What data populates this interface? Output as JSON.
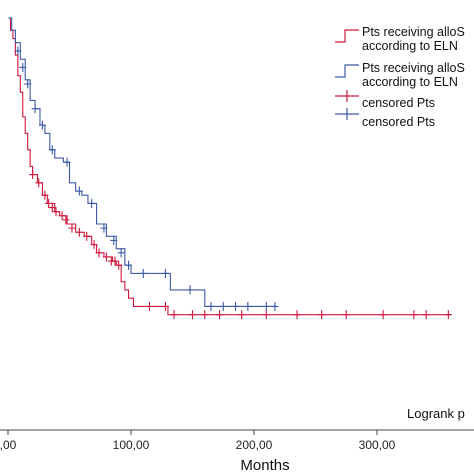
{
  "chart_data": {
    "type": "line",
    "xlabel": "Months",
    "x_ticks": [
      0,
      100,
      200,
      300
    ],
    "x_tick_labels": [
      ",00",
      "100,00",
      "200,00",
      "300,00"
    ],
    "xlim": [
      0,
      360
    ],
    "ylim": [
      0,
      1
    ],
    "annotation": "Logrank p",
    "legend": [
      {
        "label_lines": [
          "Pts receiving alloS",
          "according to ELN"
        ],
        "color": "#d0173d",
        "marker": "line"
      },
      {
        "label_lines": [
          "Pts receiving alloS",
          "according to ELN"
        ],
        "color": "#3b5aa6",
        "marker": "line"
      },
      {
        "label_lines": [
          "censored Pts"
        ],
        "color": "#d0173d",
        "marker": "cross"
      },
      {
        "label_lines": [
          "censored Pts"
        ],
        "color": "#3b5aa6",
        "marker": "cross"
      }
    ],
    "series": [
      {
        "color": "#d0173d",
        "steps": [
          [
            0,
            1.0
          ],
          [
            2,
            0.97
          ],
          [
            4,
            0.95
          ],
          [
            6,
            0.91
          ],
          [
            8,
            0.86
          ],
          [
            10,
            0.82
          ],
          [
            12,
            0.76
          ],
          [
            14,
            0.72
          ],
          [
            16,
            0.68
          ],
          [
            18,
            0.64
          ],
          [
            20,
            0.62
          ],
          [
            24,
            0.6
          ],
          [
            28,
            0.57
          ],
          [
            32,
            0.55
          ],
          [
            38,
            0.53
          ],
          [
            42,
            0.52
          ],
          [
            48,
            0.5
          ],
          [
            55,
            0.48
          ],
          [
            62,
            0.47
          ],
          [
            68,
            0.45
          ],
          [
            72,
            0.43
          ],
          [
            78,
            0.42
          ],
          [
            85,
            0.41
          ],
          [
            88,
            0.4
          ],
          [
            92,
            0.36
          ],
          [
            95,
            0.34
          ],
          [
            98,
            0.32
          ],
          [
            102,
            0.3
          ],
          [
            109,
            0.3
          ],
          [
            130,
            0.28
          ],
          [
            360,
            0.28
          ]
        ],
        "censored": [
          [
            20,
            0.62
          ],
          [
            25,
            0.6
          ],
          [
            30,
            0.57
          ],
          [
            33,
            0.55
          ],
          [
            36,
            0.54
          ],
          [
            39,
            0.53
          ],
          [
            44,
            0.52
          ],
          [
            47,
            0.51
          ],
          [
            52,
            0.49
          ],
          [
            58,
            0.48
          ],
          [
            64,
            0.47
          ],
          [
            70,
            0.45
          ],
          [
            74,
            0.43
          ],
          [
            80,
            0.42
          ],
          [
            84,
            0.41
          ],
          [
            87,
            0.41
          ],
          [
            90,
            0.4
          ],
          [
            115,
            0.3
          ],
          [
            128,
            0.3
          ],
          [
            135,
            0.28
          ],
          [
            150,
            0.28
          ],
          [
            160,
            0.28
          ],
          [
            172,
            0.28
          ],
          [
            190,
            0.28
          ],
          [
            210,
            0.28
          ],
          [
            235,
            0.28
          ],
          [
            255,
            0.28
          ],
          [
            275,
            0.28
          ],
          [
            305,
            0.28
          ],
          [
            330,
            0.28
          ],
          [
            340,
            0.28
          ],
          [
            358,
            0.28
          ]
        ]
      },
      {
        "color": "#3b5aa6",
        "steps": [
          [
            0,
            1.0
          ],
          [
            3,
            0.97
          ],
          [
            6,
            0.94
          ],
          [
            10,
            0.9
          ],
          [
            14,
            0.85
          ],
          [
            18,
            0.8
          ],
          [
            22,
            0.78
          ],
          [
            26,
            0.74
          ],
          [
            30,
            0.72
          ],
          [
            34,
            0.68
          ],
          [
            38,
            0.66
          ],
          [
            45,
            0.65
          ],
          [
            50,
            0.6
          ],
          [
            55,
            0.58
          ],
          [
            60,
            0.57
          ],
          [
            65,
            0.55
          ],
          [
            72,
            0.5
          ],
          [
            80,
            0.47
          ],
          [
            88,
            0.44
          ],
          [
            95,
            0.4
          ],
          [
            100,
            0.38
          ],
          [
            115,
            0.38
          ],
          [
            132,
            0.34
          ],
          [
            155,
            0.34
          ],
          [
            160,
            0.3
          ],
          [
            200,
            0.3
          ],
          [
            217,
            0.3
          ]
        ],
        "censored": [
          [
            8,
            0.92
          ],
          [
            12,
            0.88
          ],
          [
            16,
            0.84
          ],
          [
            22,
            0.78
          ],
          [
            28,
            0.74
          ],
          [
            36,
            0.68
          ],
          [
            48,
            0.65
          ],
          [
            58,
            0.58
          ],
          [
            68,
            0.55
          ],
          [
            78,
            0.49
          ],
          [
            86,
            0.46
          ],
          [
            92,
            0.43
          ],
          [
            98,
            0.4
          ],
          [
            110,
            0.38
          ],
          [
            128,
            0.38
          ],
          [
            148,
            0.34
          ],
          [
            165,
            0.3
          ],
          [
            175,
            0.3
          ],
          [
            185,
            0.3
          ],
          [
            195,
            0.3
          ],
          [
            210,
            0.3
          ],
          [
            217,
            0.3
          ]
        ]
      }
    ]
  }
}
